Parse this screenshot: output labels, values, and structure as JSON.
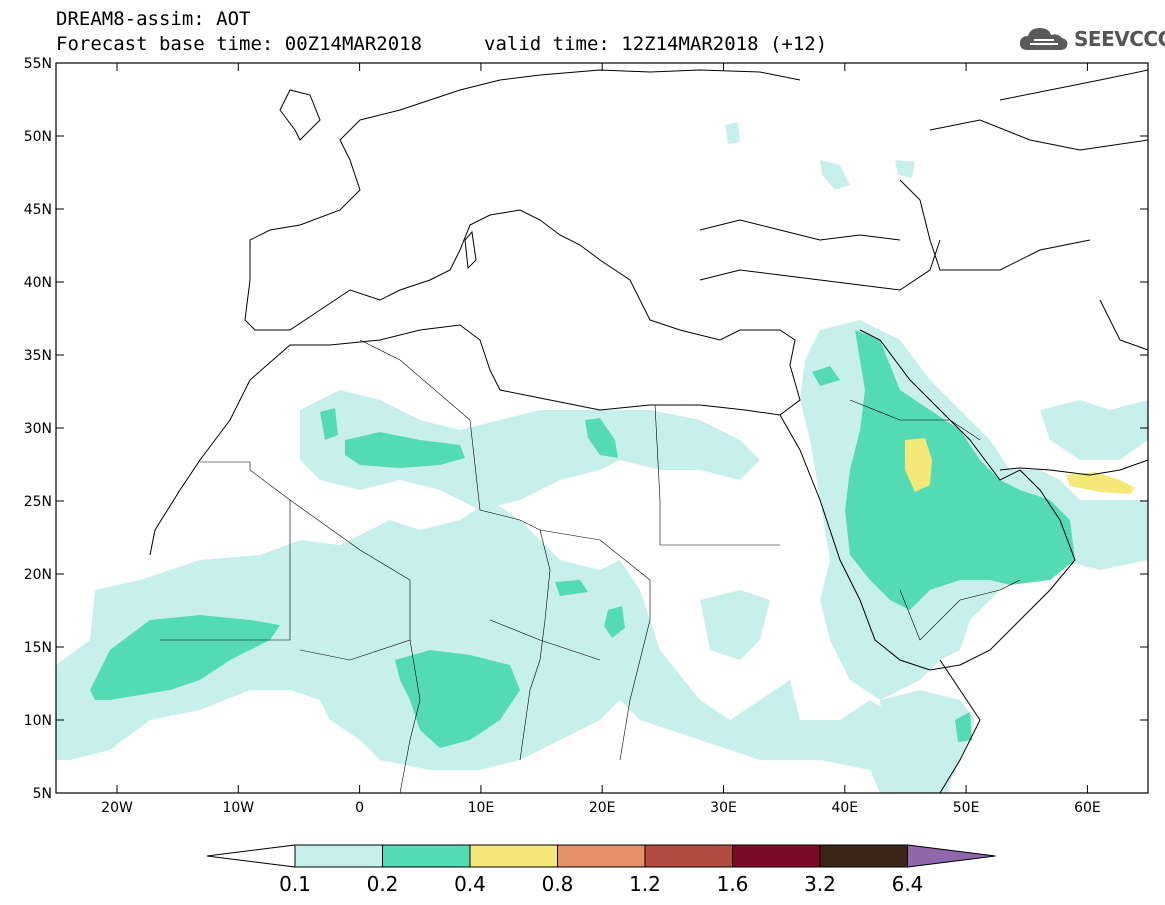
{
  "header": {
    "title": "DREAM8-assim: AOT",
    "base_time": "Forecast base time: 00Z14MAR2018",
    "valid_time": "valid time: 12Z14MAR2018 (+12)"
  },
  "logo": {
    "text": "SEEVCCC",
    "icon": "cloud-icon"
  },
  "map": {
    "lat_labels": [
      "55N",
      "50N",
      "45N",
      "40N",
      "35N",
      "30N",
      "25N",
      "20N",
      "15N",
      "10N",
      "5N"
    ],
    "lon_labels": [
      "20W",
      "10W",
      "0",
      "10E",
      "20E",
      "30E",
      "40E",
      "50E",
      "60E"
    ]
  },
  "colorbar": {
    "labels": [
      "0.1",
      "0.2",
      "0.4",
      "0.8",
      "1.2",
      "1.6",
      "3.2",
      "6.4"
    ],
    "colors": [
      "#c7f0ec",
      "#55dbb3",
      "#f3e878",
      "#e6906a",
      "#b04c40",
      "#7d0a25",
      "#3b2418",
      "#8e68aa"
    ]
  }
}
